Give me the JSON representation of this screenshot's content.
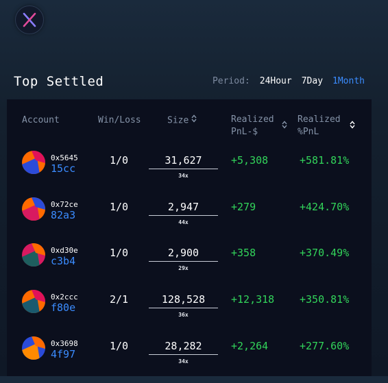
{
  "header": {
    "title": "Top Settled",
    "period_label": "Period:",
    "periods": [
      {
        "label": "24Hour",
        "active": false
      },
      {
        "label": "7Day",
        "active": false
      },
      {
        "label": "1Month",
        "active": true
      }
    ]
  },
  "table": {
    "columns": {
      "account": "Account",
      "win_loss": "Win/Loss",
      "size": "Size",
      "pnl_line1": "Realized",
      "pnl_line2": "PnL-$",
      "pct_line1": "Realized",
      "pct_line2": "%PnL"
    },
    "rows": [
      {
        "addr_prefix": "0x5645",
        "addr_suffix": "15cc",
        "win_loss": "1/0",
        "size": "31,627",
        "leverage": "34x",
        "pnl": "+5,308",
        "pct": "+581.81%",
        "avatar_colors": [
          "#ff6a00",
          "#2b4bd9",
          "#e0115a"
        ]
      },
      {
        "addr_prefix": "0x72ce",
        "addr_suffix": "82a3",
        "win_loss": "1/0",
        "size": "2,947",
        "leverage": "44x",
        "pnl": "+279",
        "pct": "+424.70%",
        "avatar_colors": [
          "#ff6a00",
          "#d81a60",
          "#2b4bd9"
        ]
      },
      {
        "addr_prefix": "0xd30e",
        "addr_suffix": "c3b4",
        "win_loss": "1/0",
        "size": "2,900",
        "leverage": "29x",
        "pnl": "+358",
        "pct": "+370.49%",
        "avatar_colors": [
          "#d81a60",
          "#1e5e5e",
          "#ff6a00"
        ]
      },
      {
        "addr_prefix": "0x2ccc",
        "addr_suffix": "f80e",
        "win_loss": "2/1",
        "size": "128,528",
        "leverage": "36x",
        "pnl": "+12,318",
        "pct": "+350.81%",
        "avatar_colors": [
          "#ff6a00",
          "#1a5a6e",
          "#e0115a"
        ]
      },
      {
        "addr_prefix": "0x3698",
        "addr_suffix": "4f97",
        "win_loss": "1/0",
        "size": "28,282",
        "leverage": "34x",
        "pnl": "+2,264",
        "pct": "+277.60%",
        "avatar_colors": [
          "#2b4bd9",
          "#ff8a00",
          "#ff6a00"
        ]
      }
    ]
  }
}
